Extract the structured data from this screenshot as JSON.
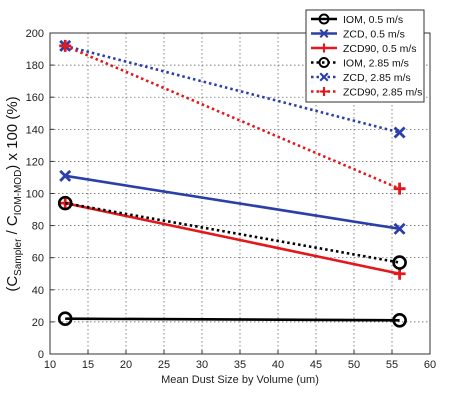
{
  "chart_data": {
    "type": "line",
    "xlabel": "Mean Dust Size by Volume (um)",
    "ylabel": {
      "open": "(C",
      "sub1": "Sampler",
      "mid": " / C",
      "sub2": "IOM-MOD",
      "close": ") x 100 (%)"
    },
    "xlim": [
      10,
      60
    ],
    "ylim": [
      0,
      200
    ],
    "xticks": [
      10,
      15,
      20,
      25,
      30,
      35,
      40,
      45,
      50,
      55,
      60
    ],
    "yticks": [
      0,
      20,
      40,
      60,
      80,
      100,
      120,
      140,
      160,
      180,
      200
    ],
    "grid": true,
    "legend_position": "top-right",
    "x": [
      12,
      56
    ],
    "series": [
      {
        "name": "IOM, 0.5 m/s",
        "values": [
          22,
          21
        ],
        "color": "#000000",
        "dash": "solid",
        "marker": "circle"
      },
      {
        "name": "ZCD, 0.5 m/s",
        "values": [
          111,
          78
        ],
        "color": "#2b3fa8",
        "dash": "solid",
        "marker": "x"
      },
      {
        "name": "ZCD90, 0.5 m/s",
        "values": [
          94,
          50
        ],
        "color": "#e3171c",
        "dash": "solid",
        "marker": "plus"
      },
      {
        "name": "IOM, 2.85 m/s",
        "values": [
          94,
          57
        ],
        "color": "#000000",
        "dash": "dotted",
        "marker": "circle"
      },
      {
        "name": "ZCD, 2.85 m/s",
        "values": [
          192,
          138
        ],
        "color": "#2b3fa8",
        "dash": "dotted",
        "marker": "x"
      },
      {
        "name": "ZCD90, 2.85 m/s",
        "values": [
          192,
          103
        ],
        "color": "#e3171c",
        "dash": "dotted",
        "marker": "plus"
      }
    ]
  }
}
